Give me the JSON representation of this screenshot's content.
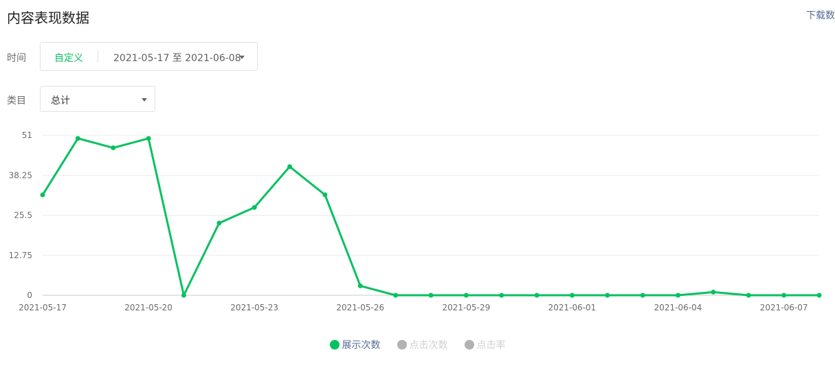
{
  "header": {
    "title": "内容表现数据",
    "download_label": "下载数"
  },
  "filters": {
    "time": {
      "label": "时间",
      "mode": "自定义",
      "range": "2021-05-17 至 2021-06-08"
    },
    "category": {
      "label": "类目",
      "value": "总计"
    }
  },
  "legend": [
    {
      "label": "展示次数",
      "active": true,
      "color": "#07c160"
    },
    {
      "label": "点击次数",
      "active": false,
      "color": "#b2b2b2"
    },
    {
      "label": "点击率",
      "active": false,
      "color": "#b2b2b2"
    }
  ],
  "chart_data": {
    "type": "line",
    "x": [
      "2021-05-17",
      "2021-05-18",
      "2021-05-19",
      "2021-05-20",
      "2021-05-21",
      "2021-05-22",
      "2021-05-23",
      "2021-05-24",
      "2021-05-25",
      "2021-05-26",
      "2021-05-27",
      "2021-05-28",
      "2021-05-29",
      "2021-05-30",
      "2021-05-31",
      "2021-06-01",
      "2021-06-02",
      "2021-06-03",
      "2021-06-04",
      "2021-06-05",
      "2021-06-06",
      "2021-06-07",
      "2021-06-08"
    ],
    "x_tick_labels": [
      "2021-05-17",
      "2021-05-20",
      "2021-05-23",
      "2021-05-26",
      "2021-05-29",
      "2021-06-01",
      "2021-06-04",
      "2021-06-07"
    ],
    "y_ticks": [
      "0",
      "12.75",
      "25.5",
      "38.25",
      "51"
    ],
    "ylim": [
      0,
      51
    ],
    "grid": true,
    "series": [
      {
        "name": "展示次数",
        "color": "#07c160",
        "values": [
          32,
          50,
          47,
          50,
          0,
          23,
          28,
          41,
          32,
          3,
          0,
          0,
          0,
          0,
          0,
          0,
          0,
          0,
          0,
          1,
          0,
          0,
          0
        ]
      }
    ]
  }
}
